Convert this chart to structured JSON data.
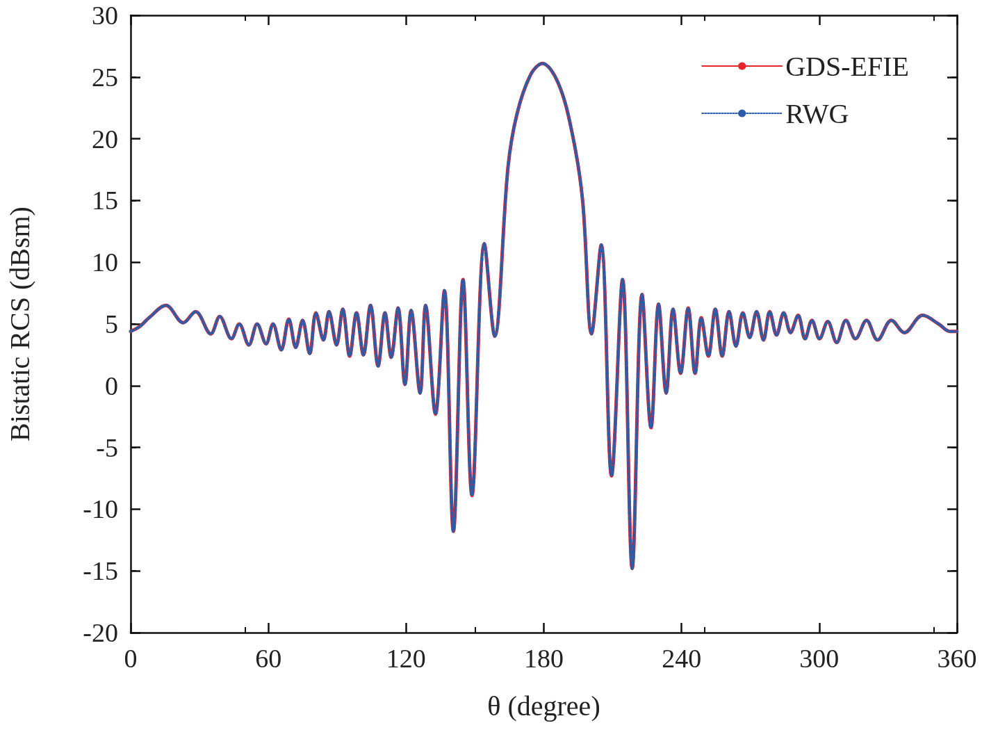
{
  "chart_data": {
    "type": "line",
    "xlabel": "θ (degree)",
    "ylabel": "Bistatic RCS (dBsm)",
    "x": [
      0,
      4,
      8,
      15.4,
      22.9,
      28.3,
      34.9,
      38.8,
      43.9,
      47.3,
      51.5,
      55.1,
      59.0,
      62.0,
      65.6,
      68.9,
      71.9,
      74.9,
      78.0,
      80.7,
      84.0,
      86.4,
      89.7,
      92.4,
      95.4,
      98.4,
      101.4,
      104.5,
      107.8,
      110.8,
      113.5,
      116.5,
      119.5,
      122.2,
      126.1,
      128.5,
      132.8,
      136.7,
      140.6,
      144.8,
      148.7,
      154.1,
      158.6,
      164.4,
      168.3,
      174.3,
      179.4,
      186.3,
      192.3,
      196.9,
      200.8,
      205.0,
      209.5,
      214.3,
      218.5,
      222.8,
      226.7,
      230.0,
      233.3,
      236.3,
      239.6,
      242.9,
      245.9,
      248.6,
      251.7,
      254.7,
      257.7,
      260.7,
      263.7,
      266.7,
      269.7,
      272.7,
      275.7,
      278.4,
      281.4,
      284.5,
      287.5,
      290.8,
      293.8,
      296.8,
      300.1,
      303.7,
      307.6,
      311.6,
      315.8,
      320.6,
      325.4,
      331.4,
      337.1,
      345.0,
      352,
      357,
      360
    ],
    "series": [
      {
        "name": "GDS-EFIE",
        "color": "#e8262a",
        "line_style": "solid",
        "values": [
          4.4,
          4.8,
          5.5,
          6.5,
          5.1,
          6.0,
          4.2,
          5.6,
          3.8,
          5.0,
          3.3,
          5.0,
          3.4,
          5.0,
          2.9,
          5.4,
          3.1,
          5.3,
          2.6,
          5.9,
          3.7,
          6.0,
          3.3,
          6.2,
          2.4,
          5.9,
          2.5,
          6.5,
          1.6,
          5.9,
          2.3,
          6.3,
          0.1,
          6.1,
          -0.6,
          6.5,
          -2.3,
          7.7,
          -11.8,
          8.6,
          -8.9,
          11.5,
          4.0,
          17.7,
          22.0,
          25.2,
          26.1,
          24.5,
          20.5,
          15.0,
          4.2,
          11.4,
          -7.3,
          8.6,
          -14.8,
          7.4,
          -3.4,
          6.6,
          -0.6,
          6.2,
          1.0,
          6.3,
          1.0,
          5.5,
          2.4,
          6.2,
          2.4,
          6.0,
          3.2,
          5.9,
          3.9,
          6.0,
          3.7,
          6.0,
          4.1,
          5.9,
          4.3,
          5.7,
          3.8,
          5.3,
          3.8,
          5.2,
          3.5,
          5.3,
          3.8,
          5.3,
          3.7,
          5.3,
          4.3,
          5.7,
          5.0,
          4.4,
          4.4
        ]
      },
      {
        "name": "RWG",
        "color": "#2a5caa",
        "line_style": "dotted",
        "values": [
          4.4,
          4.8,
          5.5,
          6.5,
          5.1,
          6.0,
          4.2,
          5.6,
          3.8,
          5.0,
          3.3,
          5.0,
          3.4,
          5.0,
          2.9,
          5.4,
          3.1,
          5.3,
          2.6,
          5.9,
          3.7,
          6.0,
          3.3,
          6.2,
          2.4,
          5.9,
          2.5,
          6.5,
          1.6,
          5.9,
          2.3,
          6.3,
          0.1,
          6.1,
          -0.6,
          6.5,
          -2.3,
          7.7,
          -11.8,
          8.6,
          -8.9,
          11.5,
          4.0,
          17.7,
          22.0,
          25.2,
          26.1,
          24.5,
          20.5,
          15.0,
          4.2,
          11.4,
          -7.3,
          8.6,
          -14.8,
          7.4,
          -3.4,
          6.6,
          -0.6,
          6.2,
          1.0,
          6.3,
          1.0,
          5.5,
          2.4,
          6.2,
          2.4,
          6.0,
          3.2,
          5.9,
          3.9,
          6.0,
          3.7,
          6.0,
          4.1,
          5.9,
          4.3,
          5.7,
          3.8,
          5.3,
          3.8,
          5.2,
          3.5,
          5.3,
          3.8,
          5.3,
          3.7,
          5.3,
          4.3,
          5.7,
          5.0,
          4.4,
          4.4
        ]
      }
    ],
    "xlim": [
      0,
      360
    ],
    "xticks": [
      0,
      60,
      120,
      180,
      240,
      300,
      360
    ],
    "ylim": [
      -20,
      30
    ],
    "yticks": [
      -20,
      -15,
      -10,
      -5,
      0,
      5,
      10,
      15,
      20,
      25,
      30
    ],
    "legend": "top right",
    "marker": "none",
    "grid": false
  }
}
